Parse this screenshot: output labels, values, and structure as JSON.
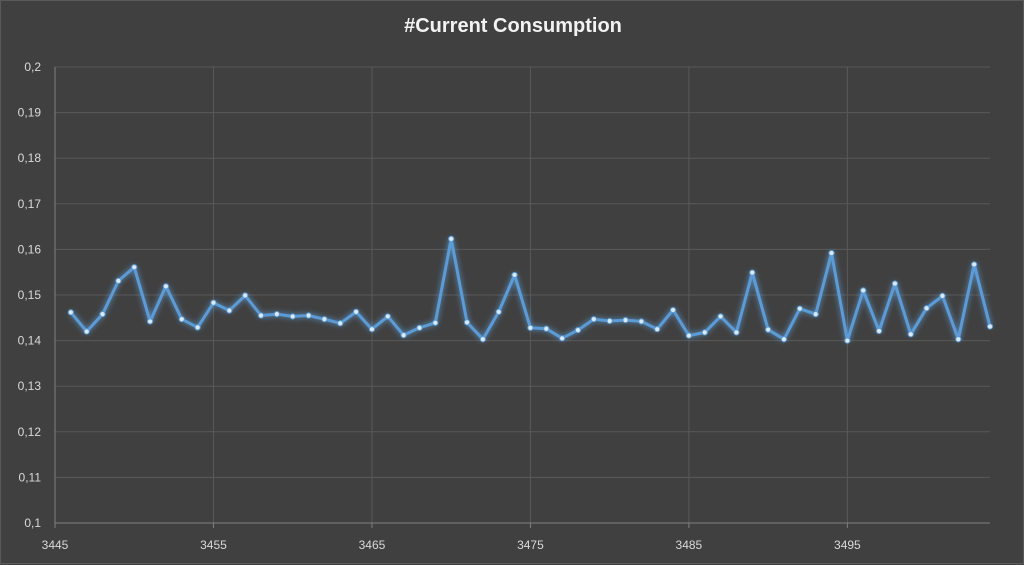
{
  "chart_data": {
    "type": "line",
    "title": "#Current Consumption",
    "xlabel": "",
    "ylabel": "",
    "xlim": [
      3445,
      3504
    ],
    "ylim": [
      0.1,
      0.2
    ],
    "x_ticks": [
      3445,
      3455,
      3465,
      3475,
      3485,
      3495
    ],
    "x_tick_labels": [
      "3445",
      "3455",
      "3465",
      "3475",
      "3485",
      "3495"
    ],
    "y_ticks": [
      0.1,
      0.11,
      0.12,
      0.13,
      0.14,
      0.15,
      0.16,
      0.17,
      0.18,
      0.19,
      0.2
    ],
    "y_tick_labels": [
      "0,1",
      "0,11",
      "0,12",
      "0,13",
      "0,14",
      "0,15",
      "0,16",
      "0,17",
      "0,18",
      "0,19",
      "0,2"
    ],
    "grid": true,
    "color": "#5b9bd5",
    "series": [
      {
        "x": [
          3446,
          3447,
          3448,
          3449,
          3450,
          3451,
          3452,
          3453,
          3454,
          3455,
          3456,
          3457,
          3458,
          3459,
          3460,
          3461,
          3462,
          3463,
          3464,
          3465,
          3466,
          3467,
          3468,
          3469,
          3470,
          3471,
          3472,
          3473,
          3474,
          3475,
          3476,
          3477,
          3478,
          3479,
          3480,
          3481,
          3482,
          3483,
          3484,
          3485,
          3486,
          3487,
          3488,
          3489,
          3490,
          3491,
          3492,
          3493,
          3494,
          3495,
          3496,
          3497,
          3498,
          3499,
          3500,
          3501,
          3502,
          3503,
          3504
        ],
        "values": [
          0.1462,
          0.142,
          0.1458,
          0.1531,
          0.1561,
          0.1442,
          0.1519,
          0.1447,
          0.1429,
          0.1483,
          0.1466,
          0.1499,
          0.1455,
          0.1458,
          0.1453,
          0.1455,
          0.1447,
          0.1438,
          0.1463,
          0.1425,
          0.1453,
          0.1412,
          0.1428,
          0.1439,
          0.1623,
          0.144,
          0.1403,
          0.1463,
          0.1544,
          0.1428,
          0.1426,
          0.1405,
          0.1423,
          0.1447,
          0.1443,
          0.1445,
          0.1442,
          0.1425,
          0.1467,
          0.1411,
          0.1418,
          0.1453,
          0.1418,
          0.1549,
          0.1424,
          0.1403,
          0.147,
          0.1458,
          0.1592,
          0.14,
          0.151,
          0.1421,
          0.1525,
          0.1414,
          0.1471,
          0.1498,
          0.1403,
          0.1567,
          0.1431
        ]
      }
    ]
  }
}
